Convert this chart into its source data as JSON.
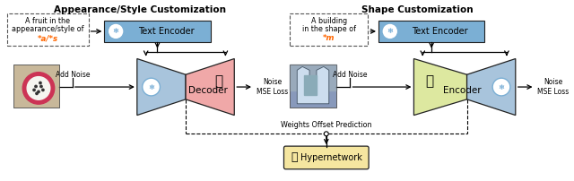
{
  "title_left": "Appearance/Style Customization",
  "title_right": "Shape Customization",
  "label_text_encoder": "Text Encoder",
  "label_decoder": "Decoder",
  "label_encoder": "Encoder",
  "label_add_noise": "Add Noise",
  "label_noise_mse": "Noise\nMSE Loss",
  "label_weights": "Weights Offset Prediction",
  "label_hypernetwork": "Hypernetwork",
  "color_blue_box": "#7BAFD4",
  "color_blue_light": "#A8C4DC",
  "color_pink": "#F0A8A8",
  "color_yellow_green": "#DDE8A0",
  "color_hypernetwork": "#F5E6A0",
  "color_border": "#222222",
  "color_special_text": "#FF6600",
  "bg_color": "#FFFFFF",
  "snowflake_bg": "#FFFFFF",
  "snowflake_ring": "#7BAFD4"
}
